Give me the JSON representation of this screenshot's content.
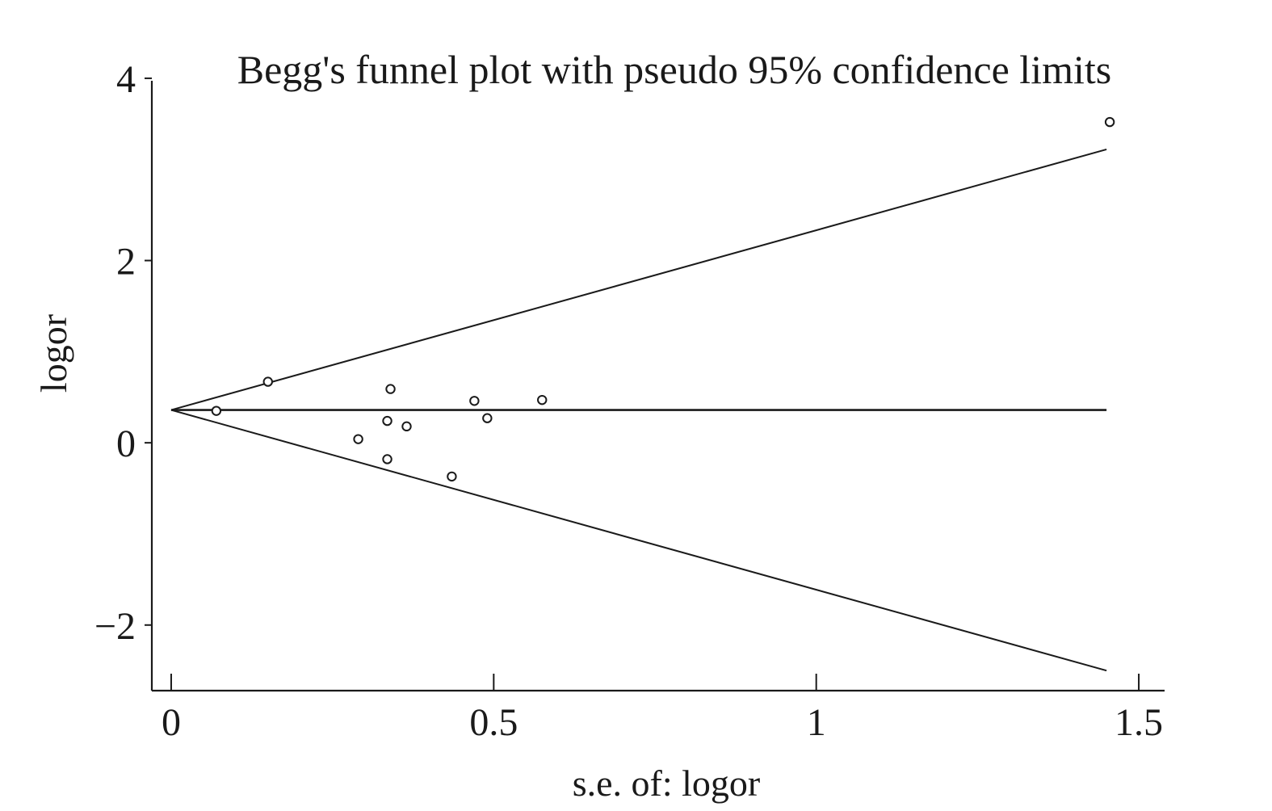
{
  "chart_data": {
    "type": "scatter",
    "title": "Begg's funnel plot with pseudo 95% confidence limits",
    "xlabel": "s.e. of: logor",
    "ylabel": "logor",
    "xlim": [
      -0.03,
      1.54
    ],
    "ylim": [
      -2.72,
      4.15
    ],
    "x_ticks": [
      0,
      0.5,
      1,
      1.5
    ],
    "x_tick_labels": [
      "0",
      "0.5",
      "1",
      "1.5"
    ],
    "y_ticks": [
      -2,
      0,
      2,
      4
    ],
    "y_tick_labels": [
      "−2",
      "0",
      "2",
      "4"
    ],
    "grid": false,
    "legend": "none",
    "pooled_estimate": 0.36,
    "se_max": 1.45,
    "limits": {
      "upper": [
        [
          0,
          0.36
        ],
        [
          1.45,
          3.22
        ]
      ],
      "lower": [
        [
          0,
          0.36
        ],
        [
          1.45,
          -2.5
        ]
      ]
    },
    "points": [
      {
        "x": 0.07,
        "y": 0.35
      },
      {
        "x": 0.15,
        "y": 0.67
      },
      {
        "x": 0.29,
        "y": 0.04
      },
      {
        "x": 0.335,
        "y": 0.24
      },
      {
        "x": 0.34,
        "y": 0.59
      },
      {
        "x": 0.335,
        "y": -0.18
      },
      {
        "x": 0.365,
        "y": 0.18
      },
      {
        "x": 0.435,
        "y": -0.37
      },
      {
        "x": 0.47,
        "y": 0.46
      },
      {
        "x": 0.49,
        "y": 0.27
      },
      {
        "x": 0.575,
        "y": 0.47
      },
      {
        "x": 1.455,
        "y": 3.52
      }
    ]
  }
}
